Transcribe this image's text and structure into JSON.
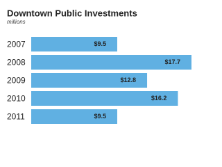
{
  "chart_data": {
    "type": "bar",
    "orientation": "horizontal",
    "title": "Downtown Public Investments",
    "subtitle": "millions",
    "categories": [
      "2007",
      "2008",
      "2009",
      "2010",
      "2011"
    ],
    "values": [
      9.5,
      17.7,
      12.8,
      16.2,
      9.5
    ],
    "value_labels": [
      "$9.5",
      "$17.7",
      "$12.8",
      "$16.2",
      "$9.5"
    ],
    "color": "#60b0e2"
  }
}
